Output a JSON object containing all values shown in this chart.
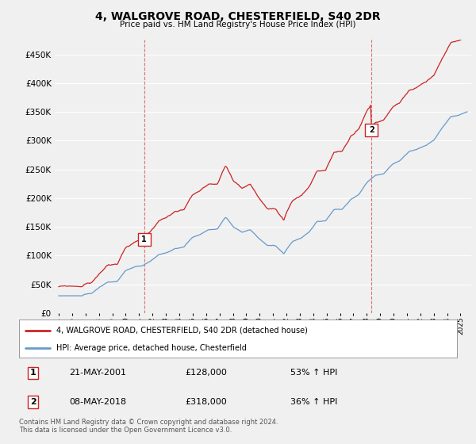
{
  "title": "4, WALGROVE ROAD, CHESTERFIELD, S40 2DR",
  "subtitle": "Price paid vs. HM Land Registry's House Price Index (HPI)",
  "yticks": [
    0,
    50000,
    100000,
    150000,
    200000,
    250000,
    300000,
    350000,
    400000,
    450000
  ],
  "ylim": [
    0,
    475000
  ],
  "xlim_start": 1994.7,
  "xlim_end": 2025.8,
  "sale1_year": 2001.38,
  "sale1_price": 128000,
  "sale2_year": 2018.36,
  "sale2_price": 318000,
  "hpi_color": "#6699cc",
  "sale_color": "#cc2222",
  "legend_line1": "4, WALGROVE ROAD, CHESTERFIELD, S40 2DR (detached house)",
  "legend_line2": "HPI: Average price, detached house, Chesterfield",
  "table_row1": [
    "1",
    "21-MAY-2001",
    "£128,000",
    "53% ↑ HPI"
  ],
  "table_row2": [
    "2",
    "08-MAY-2018",
    "£318,000",
    "36% ↑ HPI"
  ],
  "footer": "Contains HM Land Registry data © Crown copyright and database right 2024.\nThis data is licensed under the Open Government Licence v3.0.",
  "background_color": "#f0f0f0",
  "grid_color": "#ffffff"
}
